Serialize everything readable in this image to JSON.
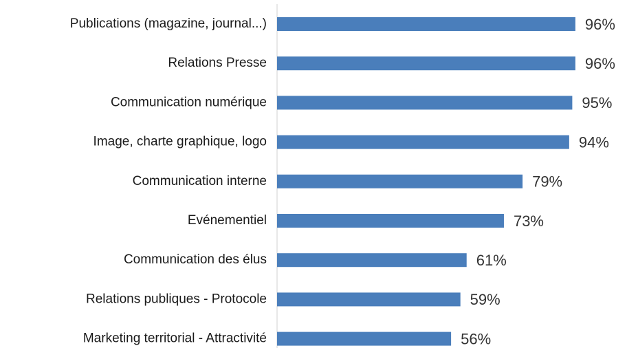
{
  "chart_data": {
    "type": "bar",
    "orientation": "horizontal",
    "categories": [
      "Publications (magazine, journal...)",
      "Relations Presse",
      "Communication numérique",
      "Image, charte graphique, logo",
      "Communication interne",
      "Evénementiel",
      "Communication des élus",
      "Relations publiques - Protocole",
      "Marketing territorial - Attractivité"
    ],
    "values": [
      96,
      96,
      95,
      94,
      79,
      73,
      61,
      59,
      56
    ],
    "value_labels": [
      "96%",
      "96%",
      "95%",
      "94%",
      "79%",
      "73%",
      "61%",
      "59%",
      "56%"
    ],
    "color": "#4a7ebb",
    "xlim": [
      0,
      100
    ]
  }
}
